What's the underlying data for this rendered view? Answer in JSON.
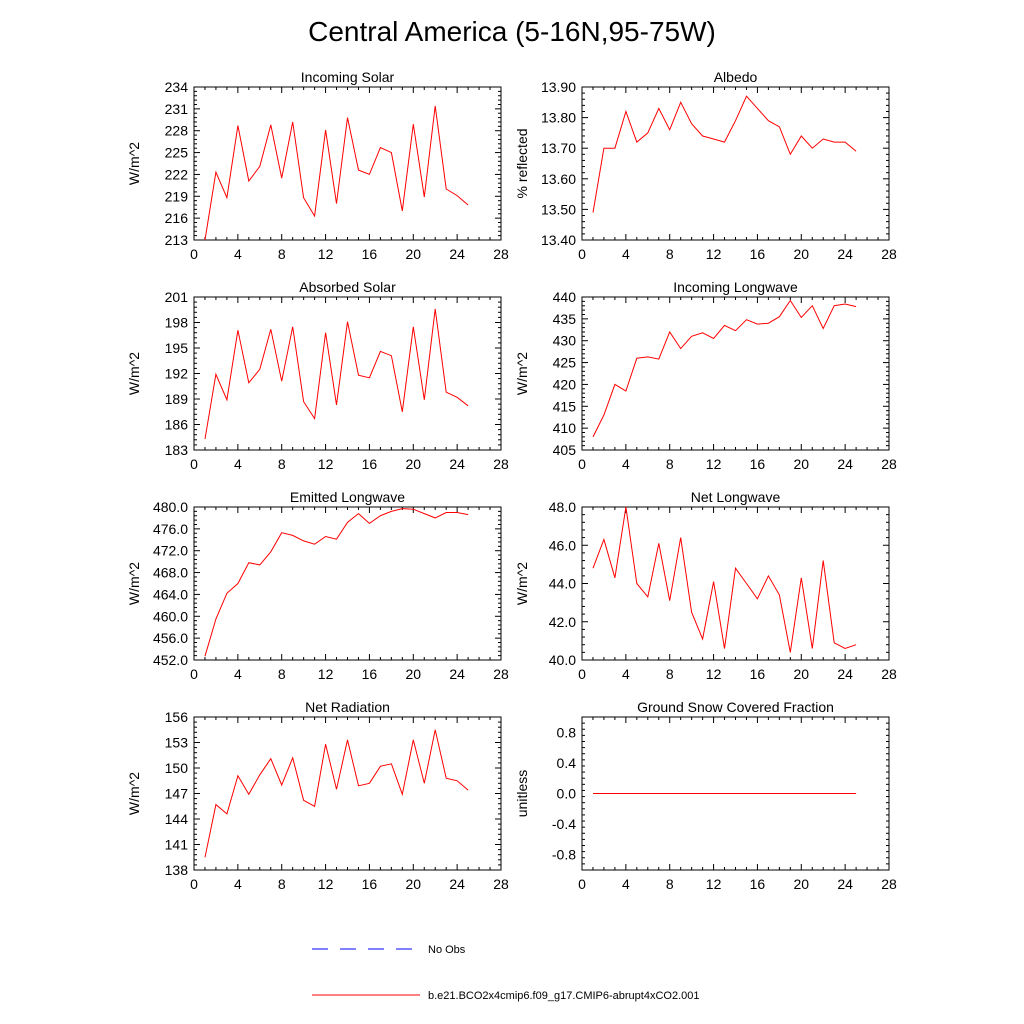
{
  "title": "Central America (5-16N,95-75W)",
  "colors": {
    "model_line": "#ff0000",
    "obs_line": "#0000ff",
    "axis": "#000000",
    "background": "#ffffff"
  },
  "legend": {
    "obs_label": "No Obs",
    "model_label": "b.e21.BCO2x4cmip6.f09_g17.CMIP6-abrupt4xCO2.001"
  },
  "chart_data": [
    {
      "type": "line",
      "title": "Incoming Solar",
      "xlabel": "",
      "ylabel": "W/m^2",
      "xlim": [
        0,
        28
      ],
      "xticks": [
        "0",
        "4",
        "8",
        "12",
        "16",
        "20",
        "24",
        "28"
      ],
      "ylim": [
        213,
        234
      ],
      "yticks": [
        "213",
        "216",
        "219",
        "222",
        "225",
        "228",
        "231",
        "234"
      ],
      "grid": false,
      "series": [
        {
          "name": "b.e21.BCO2x4cmip6.f09_g17.CMIP6-abrupt4xCO2.001",
          "x": [
            1,
            2,
            3,
            4,
            5,
            6,
            7,
            8,
            9,
            10,
            11,
            12,
            13,
            14,
            15,
            16,
            17,
            18,
            19,
            20,
            21,
            22,
            23,
            24,
            25
          ],
          "y": [
            213.0,
            222.3,
            218.8,
            228.7,
            221.1,
            223.1,
            228.8,
            221.5,
            229.2,
            218.8,
            216.3,
            228.1,
            218.0,
            229.8,
            222.6,
            222.0,
            225.7,
            225.0,
            217.0,
            228.9,
            218.9,
            231.4,
            220.0,
            219.1,
            217.8
          ]
        }
      ]
    },
    {
      "type": "line",
      "title": "Albedo",
      "xlabel": "",
      "ylabel": "% reflected",
      "xlim": [
        0,
        28
      ],
      "xticks": [
        "0",
        "4",
        "8",
        "12",
        "16",
        "20",
        "24",
        "28"
      ],
      "ylim": [
        13.4,
        13.9
      ],
      "yticks": [
        "13.40",
        "13.50",
        "13.60",
        "13.70",
        "13.80",
        "13.90"
      ],
      "grid": false,
      "series": [
        {
          "name": "b.e21.BCO2x4cmip6.f09_g17.CMIP6-abrupt4xCO2.001",
          "x": [
            1,
            2,
            3,
            4,
            5,
            6,
            7,
            8,
            9,
            10,
            11,
            12,
            13,
            14,
            15,
            16,
            17,
            18,
            19,
            20,
            21,
            22,
            23,
            24,
            25
          ],
          "y": [
            13.49,
            13.7,
            13.7,
            13.82,
            13.72,
            13.75,
            13.83,
            13.76,
            13.85,
            13.78,
            13.74,
            13.73,
            13.72,
            13.79,
            13.87,
            13.83,
            13.79,
            13.77,
            13.68,
            13.74,
            13.7,
            13.73,
            13.72,
            13.72,
            13.69
          ]
        }
      ]
    },
    {
      "type": "line",
      "title": "Absorbed Solar",
      "xlabel": "",
      "ylabel": "W/m^2",
      "xlim": [
        0,
        28
      ],
      "xticks": [
        "0",
        "4",
        "8",
        "12",
        "16",
        "20",
        "24",
        "28"
      ],
      "ylim": [
        183,
        201
      ],
      "yticks": [
        "183",
        "186",
        "189",
        "192",
        "195",
        "198",
        "201"
      ],
      "grid": false,
      "series": [
        {
          "name": "b.e21.BCO2x4cmip6.f09_g17.CMIP6-abrupt4xCO2.001",
          "x": [
            1,
            2,
            3,
            4,
            5,
            6,
            7,
            8,
            9,
            10,
            11,
            12,
            13,
            14,
            15,
            16,
            17,
            18,
            19,
            20,
            21,
            22,
            23,
            24,
            25
          ],
          "y": [
            184.3,
            191.9,
            188.9,
            197.1,
            190.9,
            192.5,
            197.2,
            191.1,
            197.5,
            188.7,
            186.7,
            196.8,
            188.3,
            198.1,
            191.8,
            191.5,
            194.6,
            194.1,
            187.5,
            197.5,
            188.9,
            199.6,
            189.8,
            189.2,
            188.2
          ]
        }
      ]
    },
    {
      "type": "line",
      "title": "Incoming Longwave",
      "xlabel": "",
      "ylabel": "W/m^2",
      "xlim": [
        0,
        28
      ],
      "xticks": [
        "0",
        "4",
        "8",
        "12",
        "16",
        "20",
        "24",
        "28"
      ],
      "ylim": [
        405,
        440
      ],
      "yticks": [
        "405",
        "410",
        "415",
        "420",
        "425",
        "430",
        "435",
        "440"
      ],
      "grid": false,
      "series": [
        {
          "name": "b.e21.BCO2x4cmip6.f09_g17.CMIP6-abrupt4xCO2.001",
          "x": [
            1,
            2,
            3,
            4,
            5,
            6,
            7,
            8,
            9,
            10,
            11,
            12,
            13,
            14,
            15,
            16,
            17,
            18,
            19,
            20,
            21,
            22,
            23,
            24,
            25
          ],
          "y": [
            408.0,
            413.0,
            420.0,
            418.5,
            426.0,
            426.3,
            425.8,
            432.0,
            428.2,
            431.0,
            431.8,
            430.5,
            433.5,
            432.3,
            434.8,
            433.8,
            434.0,
            435.5,
            439.2,
            435.3,
            438.0,
            432.8,
            438.0,
            438.4,
            437.8
          ]
        }
      ]
    },
    {
      "type": "line",
      "title": "Emitted Longwave",
      "xlabel": "",
      "ylabel": "W/m^2",
      "xlim": [
        0,
        28
      ],
      "xticks": [
        "0",
        "4",
        "8",
        "12",
        "16",
        "20",
        "24",
        "28"
      ],
      "ylim": [
        452,
        480
      ],
      "yticks": [
        "452.0",
        "456.0",
        "460.0",
        "464.0",
        "468.0",
        "472.0",
        "476.0",
        "480.0"
      ],
      "grid": false,
      "series": [
        {
          "name": "b.e21.BCO2x4cmip6.f09_g17.CMIP6-abrupt4xCO2.001",
          "x": [
            1,
            2,
            3,
            4,
            5,
            6,
            7,
            8,
            9,
            10,
            11,
            12,
            13,
            14,
            15,
            16,
            17,
            18,
            19,
            20,
            21,
            22,
            23,
            24,
            25
          ],
          "y": [
            452.7,
            459.5,
            464.2,
            466.0,
            469.8,
            469.4,
            471.8,
            475.3,
            474.8,
            473.8,
            473.2,
            474.6,
            474.1,
            477.2,
            478.8,
            477.0,
            478.4,
            479.2,
            479.7,
            479.6,
            478.8,
            478.0,
            479.0,
            479.0,
            478.6
          ]
        }
      ]
    },
    {
      "type": "line",
      "title": "Net Longwave",
      "xlabel": "",
      "ylabel": "W/m^2",
      "xlim": [
        0,
        28
      ],
      "xticks": [
        "0",
        "4",
        "8",
        "12",
        "16",
        "20",
        "24",
        "28"
      ],
      "ylim": [
        40,
        48
      ],
      "yticks": [
        "40.0",
        "42.0",
        "44.0",
        "46.0",
        "48.0"
      ],
      "grid": false,
      "series": [
        {
          "name": "b.e21.BCO2x4cmip6.f09_g17.CMIP6-abrupt4xCO2.001",
          "x": [
            1,
            2,
            3,
            4,
            5,
            6,
            7,
            8,
            9,
            10,
            11,
            12,
            13,
            14,
            15,
            16,
            17,
            18,
            19,
            20,
            21,
            22,
            23,
            24,
            25
          ],
          "y": [
            44.8,
            46.3,
            44.3,
            48.0,
            44.0,
            43.3,
            46.1,
            43.1,
            46.4,
            42.5,
            41.1,
            44.1,
            40.6,
            44.8,
            44.0,
            43.2,
            44.4,
            43.4,
            40.4,
            44.3,
            40.6,
            45.2,
            40.9,
            40.6,
            40.8
          ]
        }
      ]
    },
    {
      "type": "line",
      "title": "Net Radiation",
      "xlabel": "",
      "ylabel": "W/m^2",
      "xlim": [
        0,
        28
      ],
      "xticks": [
        "0",
        "4",
        "8",
        "12",
        "16",
        "20",
        "24",
        "28"
      ],
      "ylim": [
        138,
        156
      ],
      "yticks": [
        "138",
        "141",
        "144",
        "147",
        "150",
        "153",
        "156"
      ],
      "grid": false,
      "series": [
        {
          "name": "b.e21.BCO2x4cmip6.f09_g17.CMIP6-abrupt4xCO2.001",
          "x": [
            1,
            2,
            3,
            4,
            5,
            6,
            7,
            8,
            9,
            10,
            11,
            12,
            13,
            14,
            15,
            16,
            17,
            18,
            19,
            20,
            21,
            22,
            23,
            24,
            25
          ],
          "y": [
            139.5,
            145.7,
            144.6,
            149.1,
            146.9,
            149.2,
            151.1,
            148.0,
            151.2,
            146.2,
            145.5,
            152.8,
            147.5,
            153.3,
            147.9,
            148.2,
            150.2,
            150.5,
            146.9,
            153.3,
            148.2,
            154.5,
            148.8,
            148.5,
            147.4
          ]
        }
      ]
    },
    {
      "type": "line",
      "title": "Ground Snow Covered Fraction",
      "xlabel": "",
      "ylabel": "unitless",
      "xlim": [
        0,
        28
      ],
      "xticks": [
        "0",
        "4",
        "8",
        "12",
        "16",
        "20",
        "24",
        "28"
      ],
      "ylim": [
        -1.0,
        1.0
      ],
      "yticks": [
        "-0.8",
        "-0.4",
        "0.0",
        "0.4",
        "0.8"
      ],
      "ytick_values": [
        -0.8,
        -0.4,
        0.0,
        0.4,
        0.8
      ],
      "grid": false,
      "series": [
        {
          "name": "b.e21.BCO2x4cmip6.f09_g17.CMIP6-abrupt4xCO2.001",
          "x": [
            1,
            2,
            3,
            4,
            5,
            6,
            7,
            8,
            9,
            10,
            11,
            12,
            13,
            14,
            15,
            16,
            17,
            18,
            19,
            20,
            21,
            22,
            23,
            24,
            25
          ],
          "y": [
            0,
            0,
            0,
            0,
            0,
            0,
            0,
            0,
            0,
            0,
            0,
            0,
            0,
            0,
            0,
            0,
            0,
            0,
            0,
            0,
            0,
            0,
            0,
            0,
            0
          ]
        }
      ]
    }
  ]
}
